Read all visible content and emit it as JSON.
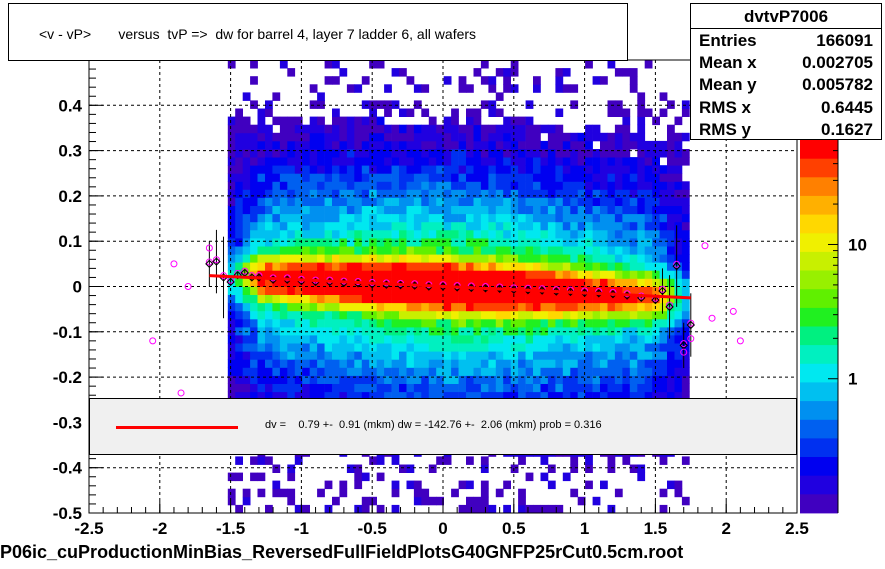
{
  "title": "<v - vP>       versus  tvP =>  dw for barrel 4, layer 7 ladder 6, all wafers",
  "stats": {
    "name": "dvtvP7006",
    "rows": [
      {
        "label": "Entries",
        "value": "166091"
      },
      {
        "label": "Mean x",
        "value": "0.002705"
      },
      {
        "label": "Mean y",
        "value": "0.005782"
      },
      {
        "label": "RMS x",
        "value": "0.6445"
      },
      {
        "label": "RMS y",
        "value": "0.1627"
      }
    ]
  },
  "fit_text": "dv =    0.79 +-  0.91 (mkm) dw = -142.76 +-  2.06 (mkm) prob = 0.316",
  "footer": "P06ic_cuProductionMinBias_ReversedFullFieldPlotsG40GNFP25rCut0.5cm.root",
  "colors": {
    "fit_line": "#ff0000",
    "profile_black": "#000000",
    "profile_magenta": "#ff00ff"
  },
  "chart_data": {
    "type": "heatmap",
    "xlim": [
      -2.5,
      2.5
    ],
    "ylim": [
      -0.5,
      0.5
    ],
    "x_ticks": [
      "-2.5",
      "-2",
      "-1.5",
      "-1",
      "-0.5",
      "0",
      "0.5",
      "1",
      "1.5",
      "2",
      "2.5"
    ],
    "y_ticks": [
      "-0.5",
      "-0.4",
      "-0.3",
      "-0.2",
      "-0.1",
      "0",
      "0.1",
      "0.2",
      "0.3",
      "0.4"
    ],
    "grid": true,
    "z_scale": "log",
    "z_ticks": [
      "1",
      "10"
    ],
    "fit_line": {
      "x": [
        -1.65,
        1.75
      ],
      "y": [
        0.024,
        -0.025
      ]
    },
    "profile_points": [
      {
        "x": -1.65,
        "y": 0.05
      },
      {
        "x": -1.6,
        "y": 0.055
      },
      {
        "x": -1.55,
        "y": 0.02
      },
      {
        "x": -1.5,
        "y": 0.01
      },
      {
        "x": -1.45,
        "y": 0.025
      },
      {
        "x": -1.4,
        "y": 0.03
      },
      {
        "x": -1.35,
        "y": 0.02
      },
      {
        "x": -1.3,
        "y": 0.02
      },
      {
        "x": -1.2,
        "y": 0.015
      },
      {
        "x": -1.1,
        "y": 0.015
      },
      {
        "x": -1.0,
        "y": 0.012
      },
      {
        "x": -0.9,
        "y": 0.01
      },
      {
        "x": -0.8,
        "y": 0.01
      },
      {
        "x": -0.7,
        "y": 0.008
      },
      {
        "x": -0.6,
        "y": 0.007
      },
      {
        "x": -0.5,
        "y": 0.005
      },
      {
        "x": -0.4,
        "y": 0.004
      },
      {
        "x": -0.3,
        "y": 0.003
      },
      {
        "x": -0.2,
        "y": 0.002
      },
      {
        "x": -0.1,
        "y": 0.0
      },
      {
        "x": 0.0,
        "y": 0.0
      },
      {
        "x": 0.1,
        "y": -0.002
      },
      {
        "x": 0.2,
        "y": -0.003
      },
      {
        "x": 0.3,
        "y": -0.004
      },
      {
        "x": 0.4,
        "y": -0.005
      },
      {
        "x": 0.5,
        "y": -0.007
      },
      {
        "x": 0.6,
        "y": -0.008
      },
      {
        "x": 0.7,
        "y": -0.009
      },
      {
        "x": 0.8,
        "y": -0.011
      },
      {
        "x": 0.9,
        "y": -0.012
      },
      {
        "x": 1.0,
        "y": -0.014
      },
      {
        "x": 1.1,
        "y": -0.015
      },
      {
        "x": 1.2,
        "y": -0.017
      },
      {
        "x": 1.3,
        "y": -0.02
      },
      {
        "x": 1.4,
        "y": -0.025
      },
      {
        "x": 1.5,
        "y": -0.03
      },
      {
        "x": 1.55,
        "y": -0.01
      },
      {
        "x": 1.6,
        "y": -0.045
      },
      {
        "x": 1.65,
        "y": 0.045
      },
      {
        "x": 1.7,
        "y": -0.13
      },
      {
        "x": 1.75,
        "y": -0.085
      }
    ],
    "outlier_points": [
      {
        "x": -2.05,
        "y": -0.12
      },
      {
        "x": -1.9,
        "y": 0.05
      },
      {
        "x": -1.85,
        "y": -0.235
      },
      {
        "x": -1.8,
        "y": 0.0
      },
      {
        "x": -1.65,
        "y": 0.085
      },
      {
        "x": 1.85,
        "y": 0.09
      },
      {
        "x": 1.9,
        "y": -0.07
      },
      {
        "x": 2.05,
        "y": -0.055
      },
      {
        "x": 2.1,
        "y": -0.12
      },
      {
        "x": 1.75,
        "y": -0.115
      },
      {
        "x": 1.7,
        "y": -0.145
      }
    ]
  }
}
